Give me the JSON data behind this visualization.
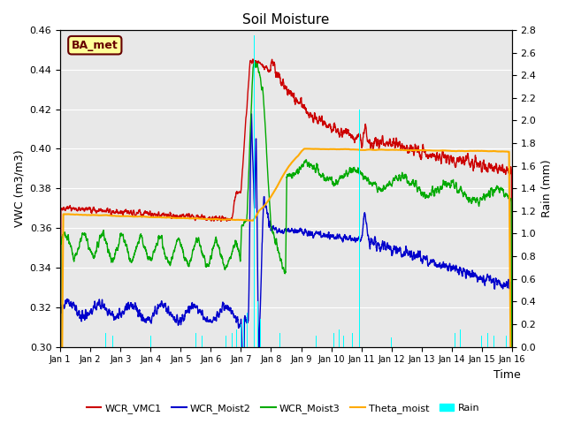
{
  "title": "Soil Moisture",
  "ylabel_left": "VWC (m3/m3)",
  "ylabel_right": "Rain (mm)",
  "xlabel": "Time",
  "ylim_left": [
    0.3,
    0.46
  ],
  "ylim_right": [
    0.0,
    2.8
  ],
  "yticks_left": [
    0.3,
    0.32,
    0.34,
    0.36,
    0.38,
    0.4,
    0.42,
    0.44,
    0.46
  ],
  "yticks_right": [
    0.0,
    0.2,
    0.4,
    0.6,
    0.8,
    1.0,
    1.2,
    1.4,
    1.6,
    1.8,
    2.0,
    2.2,
    2.4,
    2.6,
    2.8
  ],
  "xlim": [
    0,
    15
  ],
  "xtick_labels": [
    "Jan 1",
    "Jan 2",
    "Jan 3",
    "Jan 4",
    "Jan 5",
    "Jan 6",
    "Jan 7",
    "Jan 8",
    "Jan 9",
    "Jan 10",
    "Jan 11",
    "Jan 12",
    "Jan 13",
    "Jan 14",
    "Jan 15",
    "Jan 16"
  ],
  "xtick_positions": [
    0,
    1,
    2,
    3,
    4,
    5,
    6,
    7,
    8,
    9,
    10,
    11,
    12,
    13,
    14,
    15
  ],
  "colors": {
    "WCR_VMC1": "#cc0000",
    "WCR_Moist2": "#0000cc",
    "WCR_Moist3": "#00aa00",
    "Theta_moist": "#ffaa00",
    "Rain": "cyan",
    "background": "#e8e8e8",
    "label_box": "#ffff99",
    "label_text": "#660000"
  },
  "annotation_label": "BA_met",
  "legend_entries": [
    "WCR_VMC1",
    "WCR_Moist2",
    "WCR_Moist3",
    "Theta_moist",
    "Rain"
  ],
  "rain_events": [
    [
      1.5,
      0.12
    ],
    [
      1.75,
      0.1
    ],
    [
      3.0,
      0.1
    ],
    [
      4.5,
      0.12
    ],
    [
      4.7,
      0.1
    ],
    [
      5.5,
      0.1
    ],
    [
      5.7,
      0.12
    ],
    [
      5.85,
      0.15
    ],
    [
      6.0,
      0.2
    ],
    [
      6.1,
      0.25
    ],
    [
      6.2,
      0.3
    ],
    [
      6.45,
      2.75
    ],
    [
      6.55,
      0.4
    ],
    [
      6.65,
      0.25
    ],
    [
      7.3,
      0.12
    ],
    [
      8.5,
      0.1
    ],
    [
      9.1,
      0.12
    ],
    [
      9.25,
      0.15
    ],
    [
      9.4,
      0.1
    ],
    [
      9.7,
      0.12
    ],
    [
      9.95,
      2.1
    ],
    [
      11.0,
      0.08
    ],
    [
      13.1,
      0.12
    ],
    [
      13.3,
      0.15
    ],
    [
      14.0,
      0.1
    ],
    [
      14.2,
      0.12
    ],
    [
      14.4,
      0.1
    ],
    [
      14.8,
      0.1
    ]
  ]
}
